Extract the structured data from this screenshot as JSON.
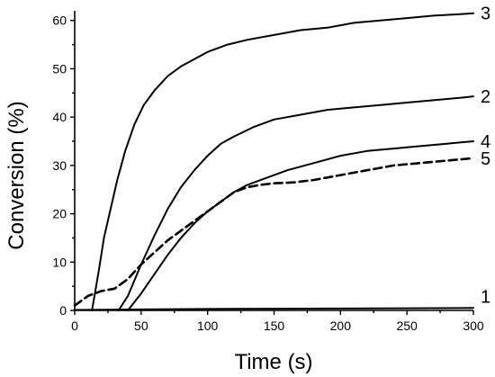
{
  "chart_data": {
    "type": "line",
    "xlabel": "Time (s)",
    "ylabel": "Conversion (%)",
    "xlim": [
      0,
      300
    ],
    "ylim": [
      0,
      62
    ],
    "xticks": [
      0,
      50,
      100,
      150,
      200,
      250,
      300
    ],
    "yticks": [
      0,
      10,
      20,
      30,
      40,
      50,
      60
    ],
    "grid": false,
    "legend": "none",
    "series": [
      {
        "name": "1",
        "style": "solid",
        "color": "#000000",
        "x": [
          0,
          50,
          100,
          150,
          200,
          250,
          300
        ],
        "y": [
          0.1,
          0.2,
          0.3,
          0.35,
          0.4,
          0.45,
          0.5
        ]
      },
      {
        "name": "2",
        "style": "solid",
        "color": "#000000",
        "x": [
          33,
          40,
          50,
          60,
          70,
          80,
          90,
          100,
          110,
          120,
          135,
          150,
          170,
          190,
          210,
          230,
          250,
          270,
          290,
          300
        ],
        "y": [
          0,
          3,
          9.5,
          15.5,
          21,
          25.5,
          29,
          32,
          34.5,
          36,
          38,
          39.5,
          40.5,
          41.5,
          42,
          42.5,
          43,
          43.5,
          44,
          44.3
        ]
      },
      {
        "name": "3",
        "style": "solid",
        "color": "#000000",
        "x": [
          13,
          18,
          22,
          27,
          32,
          38,
          45,
          52,
          60,
          70,
          80,
          90,
          100,
          115,
          130,
          150,
          170,
          190,
          210,
          230,
          250,
          270,
          290,
          300
        ],
        "y": [
          0,
          8,
          15,
          21,
          27,
          33,
          38.5,
          42.5,
          45.5,
          48.5,
          50.5,
          52,
          53.5,
          55,
          56,
          57,
          58,
          58.5,
          59.5,
          60,
          60.5,
          61,
          61.3,
          61.5
        ]
      },
      {
        "name": "4",
        "style": "solid",
        "color": "#000000",
        "x": [
          40,
          50,
          60,
          70,
          80,
          90,
          100,
          110,
          120,
          130,
          145,
          160,
          180,
          200,
          220,
          240,
          260,
          280,
          300
        ],
        "y": [
          0,
          3.5,
          7.5,
          11.5,
          15,
          18,
          20.5,
          22.5,
          24.5,
          26,
          27.5,
          29,
          30.5,
          32,
          33,
          33.5,
          34,
          34.5,
          35
        ]
      },
      {
        "name": "5",
        "style": "dashed",
        "color": "#000000",
        "x": [
          0,
          10,
          20,
          30,
          40,
          50,
          60,
          70,
          80,
          90,
          100,
          110,
          120,
          130,
          140,
          150,
          165,
          180,
          200,
          220,
          240,
          260,
          280,
          300
        ],
        "y": [
          1,
          3,
          4,
          4.5,
          6.5,
          9.5,
          12,
          14.5,
          16.5,
          18.5,
          20.5,
          22.5,
          24.5,
          25.5,
          26,
          26.3,
          26.5,
          27,
          28,
          29,
          30,
          30.5,
          31,
          31.5
        ]
      }
    ]
  }
}
